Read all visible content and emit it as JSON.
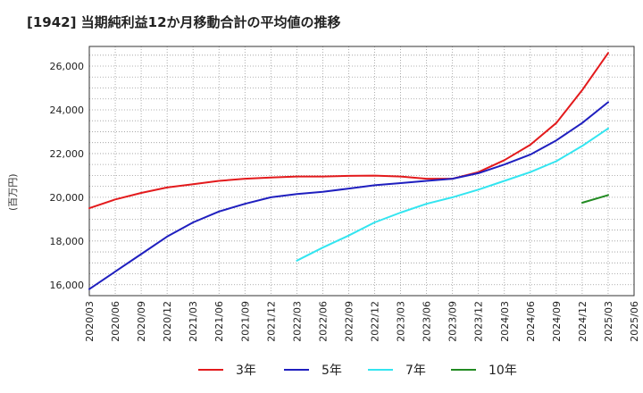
{
  "chart_data": {
    "type": "line",
    "title": "[1942]  当期純利益12か月移動合計の平均値の推移",
    "ylabel": "(百万円)",
    "xlabel": "",
    "ylim": [
      15500,
      26900
    ],
    "y_ticks": [
      16000,
      18000,
      20000,
      22000,
      24000,
      26000
    ],
    "y_tick_labels": [
      "16,000",
      "18,000",
      "20,000",
      "22,000",
      "24,000",
      "26,000"
    ],
    "x_tick_labels": [
      "2020/03",
      "2020/06",
      "2020/09",
      "2020/12",
      "2021/03",
      "2021/06",
      "2021/09",
      "2021/12",
      "2022/03",
      "2022/06",
      "2022/09",
      "2022/12",
      "2023/03",
      "2023/06",
      "2023/09",
      "2023/12",
      "2024/03",
      "2024/06",
      "2024/09",
      "2024/12",
      "2025/03",
      "2025/06"
    ],
    "grid": true,
    "legend_position": "bottom",
    "series": [
      {
        "name": "3年",
        "color": "#e31a1c",
        "x": [
          "2020/03",
          "2020/06",
          "2020/09",
          "2020/12",
          "2021/03",
          "2021/06",
          "2021/09",
          "2021/12",
          "2022/03",
          "2022/06",
          "2022/09",
          "2022/12",
          "2023/03",
          "2023/06",
          "2023/09",
          "2023/12",
          "2024/03",
          "2024/06",
          "2024/09",
          "2024/12",
          "2025/03"
        ],
        "values": [
          19500,
          19900,
          20200,
          20450,
          20600,
          20750,
          20850,
          20900,
          20950,
          20950,
          20980,
          20990,
          20950,
          20850,
          20850,
          21150,
          21700,
          22400,
          23400,
          24900,
          26600
        ]
      },
      {
        "name": "5年",
        "color": "#1f1fbf",
        "x": [
          "2020/03",
          "2020/06",
          "2020/09",
          "2020/12",
          "2021/03",
          "2021/06",
          "2021/09",
          "2021/12",
          "2022/03",
          "2022/06",
          "2022/09",
          "2022/12",
          "2023/03",
          "2023/06",
          "2023/09",
          "2023/12",
          "2024/03",
          "2024/06",
          "2024/09",
          "2024/12",
          "2025/03"
        ],
        "values": [
          15800,
          16600,
          17400,
          18200,
          18850,
          19350,
          19700,
          20000,
          20150,
          20250,
          20400,
          20550,
          20650,
          20750,
          20850,
          21100,
          21500,
          21950,
          22600,
          23400,
          24350
        ]
      },
      {
        "name": "7年",
        "color": "#33e5f0",
        "x": [
          "2022/03",
          "2022/06",
          "2022/09",
          "2022/12",
          "2023/03",
          "2023/06",
          "2023/09",
          "2023/12",
          "2024/03",
          "2024/06",
          "2024/09",
          "2024/12",
          "2025/03"
        ],
        "values": [
          17100,
          17700,
          18250,
          18850,
          19300,
          19700,
          20000,
          20350,
          20750,
          21150,
          21650,
          22350,
          23150
        ]
      },
      {
        "name": "10年",
        "color": "#228b22",
        "x": [
          "2024/12",
          "2025/03"
        ],
        "values": [
          19750,
          20100
        ]
      }
    ]
  }
}
